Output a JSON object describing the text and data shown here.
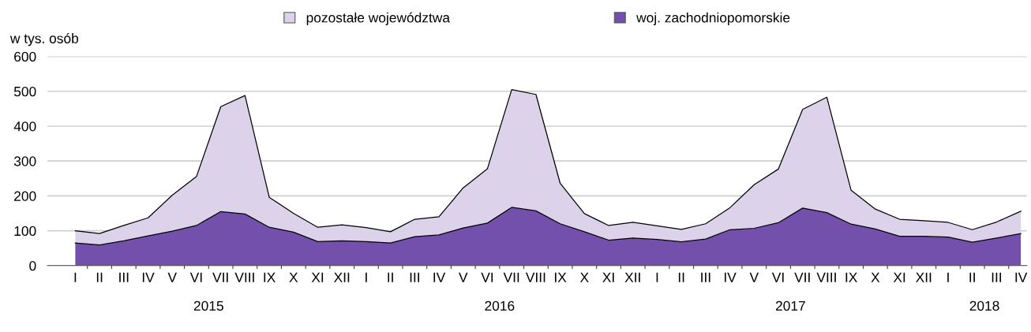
{
  "chart_data": {
    "type": "area",
    "stacked": true,
    "ylabel": "w tys. osób",
    "categories": [
      "I",
      "II",
      "III",
      "IV",
      "V",
      "VI",
      "VII",
      "VIII",
      "IX",
      "X",
      "XI",
      "XII",
      "I",
      "II",
      "III",
      "IV",
      "V",
      "VI",
      "VII",
      "VIII",
      "IX",
      "X",
      "XI",
      "XII",
      "I",
      "II",
      "III",
      "IV",
      "V",
      "VI",
      "VII",
      "VIII",
      "IX",
      "X",
      "XI",
      "XII",
      "I",
      "II",
      "III",
      "IV"
    ],
    "series": [
      {
        "name": "woj. zachodniopomorskie",
        "color": "#7350ac",
        "values": [
          65,
          59,
          71,
          85,
          99,
          115,
          155,
          148,
          110,
          96,
          69,
          71,
          69,
          65,
          83,
          88,
          108,
          122,
          167,
          157,
          120,
          97,
          73,
          79,
          75,
          68,
          76,
          103,
          107,
          123,
          165,
          152,
          119,
          105,
          84,
          84,
          82,
          67,
          79,
          92
        ]
      },
      {
        "name": "pozostałe województwa",
        "color": "#dcd3ea",
        "values": [
          35,
          33,
          44,
          52,
          103,
          141,
          301,
          340,
          86,
          54,
          41,
          46,
          40,
          32,
          50,
          52,
          115,
          156,
          338,
          334,
          116,
          52,
          42,
          45,
          39,
          36,
          44,
          63,
          125,
          154,
          283,
          331,
          97,
          57,
          49,
          45,
          42,
          36,
          46,
          64
        ]
      }
    ],
    "ylim": [
      0,
      600
    ],
    "yticks": [
      0,
      100,
      200,
      300,
      400,
      500,
      600
    ],
    "grid": "y",
    "legend": "top",
    "annotations": [
      "2015",
      "2016",
      "2017",
      "2018"
    ]
  }
}
